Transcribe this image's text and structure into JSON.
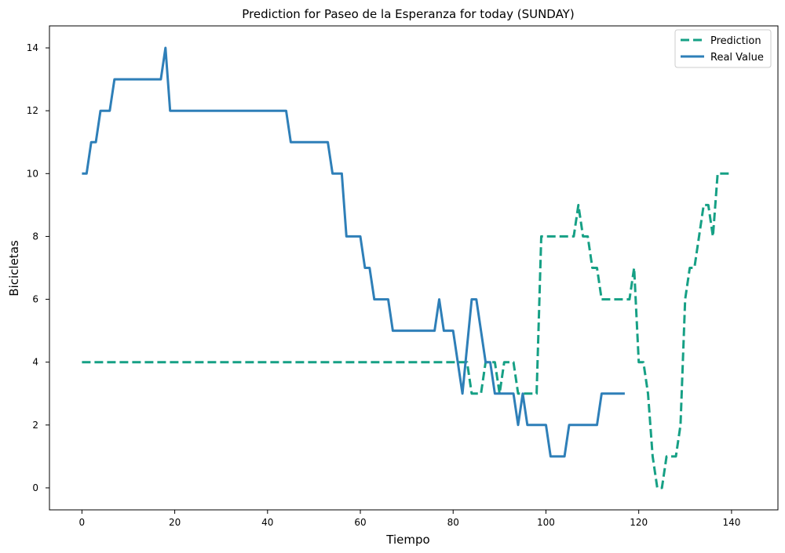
{
  "chart_data": {
    "type": "line",
    "title": "Prediction for Paseo de la Esperanza for today (SUNDAY)",
    "xlabel": "Tiempo",
    "ylabel": "Bicicletas",
    "xlim": [
      -7,
      150
    ],
    "ylim": [
      -0.7,
      14.7
    ],
    "xticks": [
      0,
      20,
      40,
      60,
      80,
      100,
      120,
      140
    ],
    "yticks": [
      0,
      2,
      4,
      6,
      8,
      10,
      12,
      14
    ],
    "grid": false,
    "legend_position": "top-right",
    "series": [
      {
        "name": "Prediction",
        "color": "#16a085",
        "style": "dashed",
        "points": [
          [
            0,
            4
          ],
          [
            83,
            4
          ],
          [
            84,
            3
          ],
          [
            86,
            3
          ],
          [
            87,
            4
          ],
          [
            89,
            4
          ],
          [
            90,
            3
          ],
          [
            91,
            4
          ],
          [
            93,
            4
          ],
          [
            94,
            3
          ],
          [
            98,
            3
          ],
          [
            99,
            8
          ],
          [
            106,
            8
          ],
          [
            107,
            9
          ],
          [
            108,
            8
          ],
          [
            109,
            8
          ],
          [
            110,
            7
          ],
          [
            111,
            7
          ],
          [
            112,
            6
          ],
          [
            118,
            6
          ],
          [
            119,
            7
          ],
          [
            120,
            4
          ],
          [
            121,
            4
          ],
          [
            122,
            3
          ],
          [
            123,
            1
          ],
          [
            124,
            0
          ],
          [
            125,
            0
          ],
          [
            126,
            1
          ],
          [
            128,
            1
          ],
          [
            129,
            2
          ],
          [
            130,
            6
          ],
          [
            131,
            7
          ],
          [
            132,
            7
          ],
          [
            134,
            9
          ],
          [
            135,
            9
          ],
          [
            136,
            8
          ],
          [
            137,
            10
          ],
          [
            140,
            10
          ]
        ]
      },
      {
        "name": "Real Value",
        "color": "#2e7fb8",
        "style": "solid",
        "points": [
          [
            0,
            10
          ],
          [
            1,
            10
          ],
          [
            2,
            11
          ],
          [
            3,
            11
          ],
          [
            4,
            12
          ],
          [
            6,
            12
          ],
          [
            7,
            13
          ],
          [
            17,
            13
          ],
          [
            18,
            14
          ],
          [
            19,
            12
          ],
          [
            44,
            12
          ],
          [
            45,
            11
          ],
          [
            53,
            11
          ],
          [
            54,
            10
          ],
          [
            56,
            10
          ],
          [
            57,
            8
          ],
          [
            60,
            8
          ],
          [
            61,
            7
          ],
          [
            62,
            7
          ],
          [
            63,
            6
          ],
          [
            66,
            6
          ],
          [
            67,
            5
          ],
          [
            76,
            5
          ],
          [
            77,
            6
          ],
          [
            78,
            5
          ],
          [
            80,
            5
          ],
          [
            82,
            3
          ],
          [
            84,
            6
          ],
          [
            85,
            6
          ],
          [
            86,
            5
          ],
          [
            87,
            4
          ],
          [
            88,
            4
          ],
          [
            89,
            3
          ],
          [
            93,
            3
          ],
          [
            94,
            2
          ],
          [
            95,
            3
          ],
          [
            96,
            2
          ],
          [
            100,
            2
          ],
          [
            101,
            1
          ],
          [
            104,
            1
          ],
          [
            105,
            2
          ],
          [
            111,
            2
          ],
          [
            112,
            3
          ],
          [
            117,
            3
          ]
        ]
      }
    ]
  }
}
